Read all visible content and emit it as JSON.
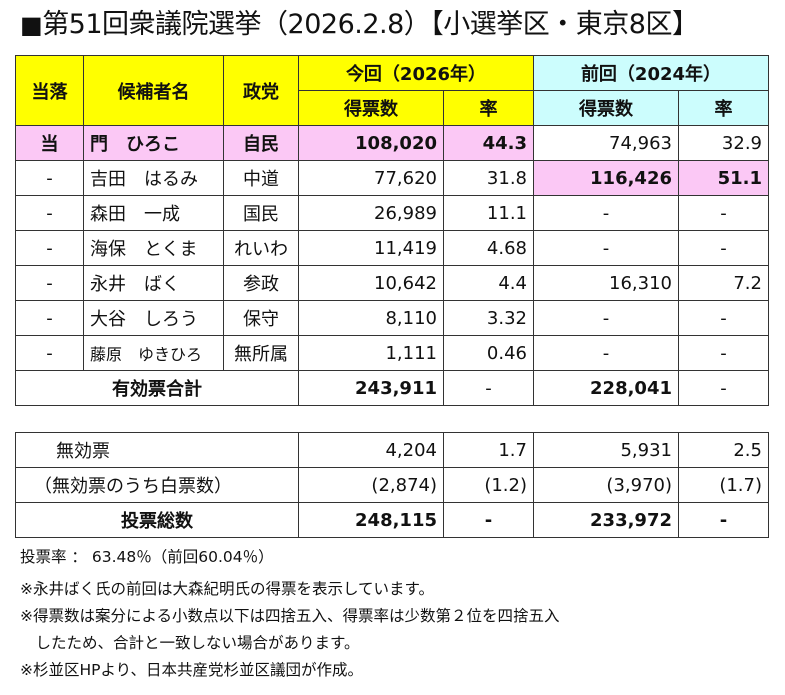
{
  "title": "第51回衆議院選挙（2026.2.8）【小選挙区・東京8区】",
  "title_mark": "■",
  "colors": {
    "current_header": "#ffff00",
    "previous_header": "#ccfdfd",
    "highlight": "#fbc8f5"
  },
  "headers": {
    "result": "当落",
    "candidate": "候補者名",
    "party": "政党",
    "current": "今回（2026年）",
    "previous": "前回（2024年）",
    "votes": "得票数",
    "rate": "率"
  },
  "candidates": [
    {
      "result": "当",
      "name": "門　ひろこ",
      "party": "自民",
      "votes": "108,020",
      "rate": "44.3",
      "prev_votes": "74,963",
      "prev_rate": "32.9"
    },
    {
      "result": "-",
      "name": "吉田　はるみ",
      "party": "中道",
      "votes": "77,620",
      "rate": "31.8",
      "prev_votes": "116,426",
      "prev_rate": "51.1"
    },
    {
      "result": "-",
      "name": "森田　一成",
      "party": "国民",
      "votes": "26,989",
      "rate": "11.1",
      "prev_votes": "-",
      "prev_rate": "-"
    },
    {
      "result": "-",
      "name": "海保　とくま",
      "party": "れいわ",
      "votes": "11,419",
      "rate": "4.68",
      "prev_votes": "-",
      "prev_rate": "-"
    },
    {
      "result": "-",
      "name": "永井　ばく",
      "party": "参政",
      "votes": "10,642",
      "rate": "4.4",
      "prev_votes": "16,310",
      "prev_rate": "7.2"
    },
    {
      "result": "-",
      "name": "大谷　しろう",
      "party": "保守",
      "votes": "8,110",
      "rate": "3.32",
      "prev_votes": "-",
      "prev_rate": "-"
    },
    {
      "result": "-",
      "name": "藤原　ゆきひろ",
      "party": "無所属",
      "votes": "1,111",
      "rate": "0.46",
      "prev_votes": "-",
      "prev_rate": "-"
    }
  ],
  "valid_total": {
    "label": "有効票合計",
    "votes": "243,911",
    "rate": "-",
    "prev_votes": "228,041",
    "prev_rate": "-"
  },
  "invalid": {
    "label": "無効票",
    "votes": "4,204",
    "rate": "1.7",
    "prev_votes": "5,931",
    "prev_rate": "2.5"
  },
  "blank": {
    "label": "（無効票のうち白票数）",
    "votes": "(2,874)",
    "rate": "(1.2)",
    "prev_votes": "(3,970)",
    "prev_rate": "(1.7)"
  },
  "total": {
    "label": "投票総数",
    "votes": "248,115",
    "rate": "-",
    "prev_votes": "233,972",
    "prev_rate": "-"
  },
  "notes": [
    "投票率 ： 63.48％（前回60.04％）",
    "※永井ばく氏の前回は大森紀明氏の得票を表示しています。",
    "※得票数は案分による小数点以下は四捨五入、得票率は少数第２位を四捨五入",
    "　したため、合計と一致しない場合があります。",
    "※杉並区HPより、日本共産党杉並区議団が作成。"
  ]
}
